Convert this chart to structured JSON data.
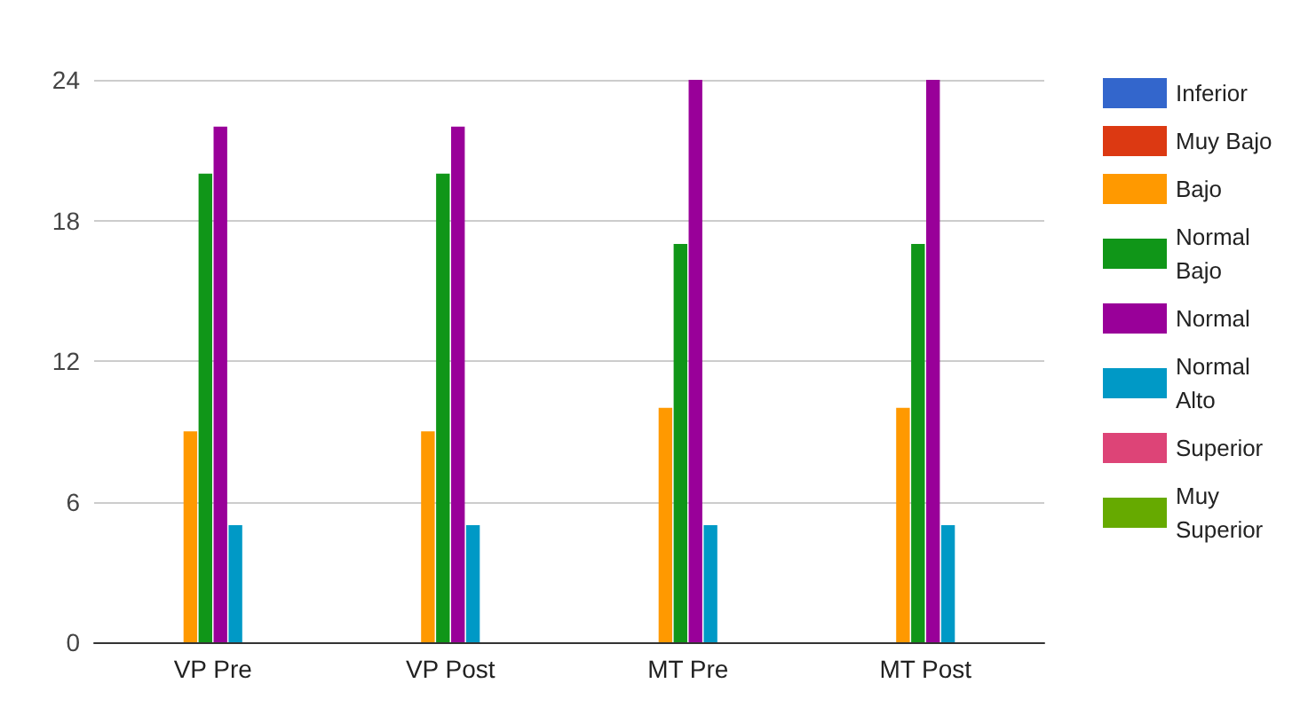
{
  "chart_data": {
    "type": "bar",
    "categories": [
      "VP Pre",
      "VP Post",
      "MT Pre",
      "MT Post"
    ],
    "series": [
      {
        "name": "Inferior",
        "color": "#3366cc",
        "values": [
          0,
          0,
          0,
          0
        ]
      },
      {
        "name": "Muy Bajo",
        "color": "#dc3912",
        "values": [
          0,
          0,
          0,
          0
        ]
      },
      {
        "name": "Bajo",
        "color": "#ff9900",
        "values": [
          9,
          9,
          10,
          10
        ]
      },
      {
        "name": "Normal Bajo",
        "color": "#109618",
        "values": [
          20,
          20,
          17,
          17
        ]
      },
      {
        "name": "Normal",
        "color": "#990099",
        "values": [
          22,
          22,
          24,
          24
        ]
      },
      {
        "name": "Normal Alto",
        "color": "#0099c6",
        "values": [
          5,
          5,
          5,
          5
        ]
      },
      {
        "name": "Superior",
        "color": "#dd4477",
        "values": [
          0,
          0,
          0,
          0
        ]
      },
      {
        "name": "Muy Superior",
        "color": "#66aa00",
        "values": [
          0,
          0,
          0,
          0
        ]
      }
    ],
    "ylim": [
      0,
      24
    ],
    "yticks": [
      0,
      6,
      12,
      18,
      24
    ],
    "grid": true,
    "legend": "right"
  }
}
